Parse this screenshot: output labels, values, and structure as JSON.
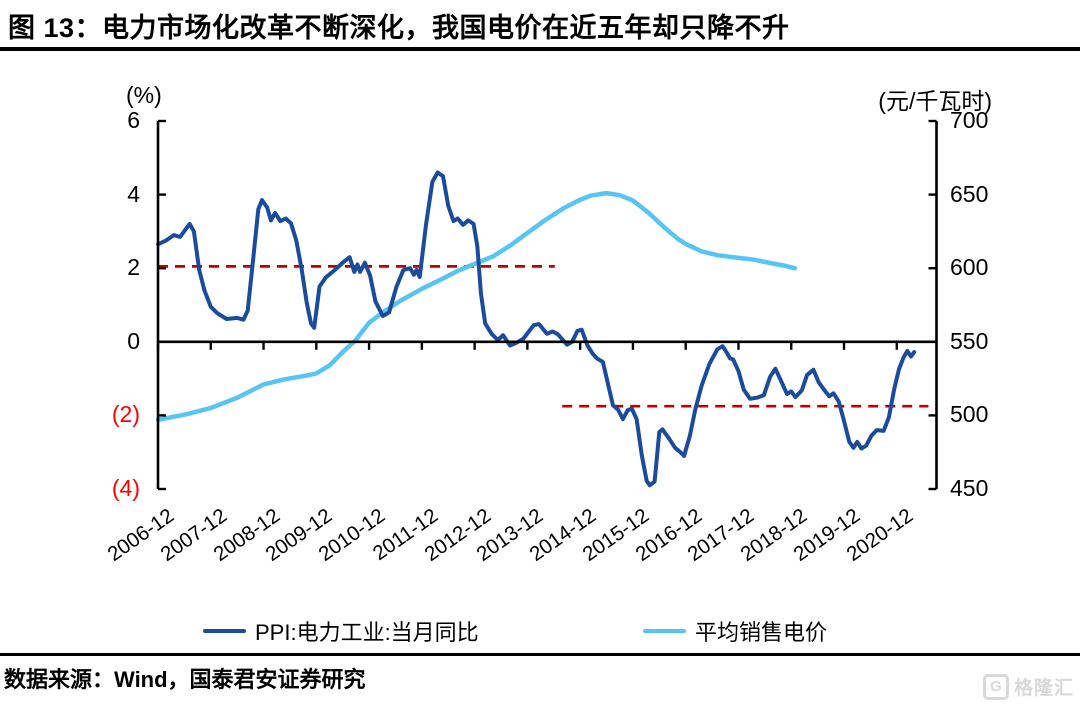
{
  "figure": {
    "title": "图 13：电力市场化改革不断深化，我国电价在近五年却只降不升"
  },
  "source": {
    "text": "数据来源：Wind，国泰君安证券研究"
  },
  "watermark": {
    "text": "格隆汇"
  },
  "chart_data": {
    "type": "line",
    "figure_no": "图 13",
    "title": "电力市场化改革不断深化，我国电价在近五年却只降不升",
    "grid": false,
    "legend_position": "bottom",
    "y_left": {
      "unit": "(%)",
      "range": [
        -4,
        6
      ],
      "ticks": [
        {
          "label": "6",
          "value": 6,
          "color": "#000000"
        },
        {
          "label": "4",
          "value": 4,
          "color": "#000000"
        },
        {
          "label": "2",
          "value": 2,
          "color": "#000000"
        },
        {
          "label": "0",
          "value": 0,
          "color": "#000000"
        },
        {
          "label": "(2)",
          "value": -2,
          "color": "#fe0000"
        },
        {
          "label": "(4)",
          "value": -4,
          "color": "#fe0000"
        }
      ]
    },
    "y_right": {
      "unit": "(元/千瓦时)",
      "range": [
        450,
        700
      ],
      "ticks": [
        {
          "label": "700",
          "value": 700,
          "color": "#000000"
        },
        {
          "label": "650",
          "value": 650,
          "color": "#000000"
        },
        {
          "label": "600",
          "value": 600,
          "color": "#000000"
        },
        {
          "label": "550",
          "value": 550,
          "color": "#000000"
        },
        {
          "label": "500",
          "value": 500,
          "color": "#000000"
        },
        {
          "label": "450",
          "value": 450,
          "color": "#000000"
        }
      ]
    },
    "x_ticks": [
      "2006-12",
      "2007-12",
      "2008-12",
      "2009-12",
      "2010-12",
      "2011-12",
      "2012-12",
      "2013-12",
      "2014-12",
      "2015-12",
      "2016-12",
      "2017-12",
      "2018-12",
      "2019-12",
      "2020-12"
    ],
    "x_unit_note": "x encoded as years after 2006-12",
    "series": [
      {
        "name": "PPI:电力工业:当月同比",
        "axis": "left",
        "color": "#1a4b9d",
        "width": 4,
        "points": [
          [
            0,
            2.65
          ],
          [
            0.15,
            2.75
          ],
          [
            0.3,
            2.9
          ],
          [
            0.42,
            2.85
          ],
          [
            0.52,
            3.05
          ],
          [
            0.6,
            3.2
          ],
          [
            0.68,
            3.0
          ],
          [
            0.78,
            1.95
          ],
          [
            0.88,
            1.4
          ],
          [
            1.0,
            0.95
          ],
          [
            1.12,
            0.78
          ],
          [
            1.3,
            0.62
          ],
          [
            1.5,
            0.65
          ],
          [
            1.62,
            0.6
          ],
          [
            1.7,
            0.85
          ],
          [
            1.8,
            2.2
          ],
          [
            1.9,
            3.6
          ],
          [
            1.97,
            3.85
          ],
          [
            2.07,
            3.65
          ],
          [
            2.14,
            3.3
          ],
          [
            2.22,
            3.5
          ],
          [
            2.32,
            3.28
          ],
          [
            2.42,
            3.35
          ],
          [
            2.52,
            3.22
          ],
          [
            2.62,
            2.75
          ],
          [
            2.72,
            2.0
          ],
          [
            2.82,
            1.05
          ],
          [
            2.9,
            0.5
          ],
          [
            2.96,
            0.38
          ],
          [
            3.06,
            1.5
          ],
          [
            3.18,
            1.75
          ],
          [
            3.35,
            1.95
          ],
          [
            3.5,
            2.15
          ],
          [
            3.63,
            2.3
          ],
          [
            3.72,
            1.9
          ],
          [
            3.78,
            2.1
          ],
          [
            3.83,
            1.9
          ],
          [
            3.92,
            2.15
          ],
          [
            4.02,
            1.8
          ],
          [
            4.12,
            1.1
          ],
          [
            4.26,
            0.7
          ],
          [
            4.38,
            0.8
          ],
          [
            4.52,
            1.5
          ],
          [
            4.65,
            1.95
          ],
          [
            4.78,
            2.0
          ],
          [
            4.85,
            1.82
          ],
          [
            4.9,
            1.95
          ],
          [
            4.96,
            1.76
          ],
          [
            5.08,
            3.2
          ],
          [
            5.2,
            4.35
          ],
          [
            5.3,
            4.6
          ],
          [
            5.4,
            4.5
          ],
          [
            5.5,
            3.7
          ],
          [
            5.6,
            3.28
          ],
          [
            5.68,
            3.35
          ],
          [
            5.78,
            3.18
          ],
          [
            5.88,
            3.3
          ],
          [
            5.98,
            3.2
          ],
          [
            6.05,
            2.6
          ],
          [
            6.12,
            1.3
          ],
          [
            6.2,
            0.5
          ],
          [
            6.32,
            0.22
          ],
          [
            6.44,
            0.05
          ],
          [
            6.54,
            0.18
          ],
          [
            6.67,
            -0.1
          ],
          [
            6.8,
            -0.02
          ],
          [
            6.92,
            0.08
          ],
          [
            7.12,
            0.45
          ],
          [
            7.22,
            0.48
          ],
          [
            7.37,
            0.22
          ],
          [
            7.48,
            0.28
          ],
          [
            7.58,
            0.2
          ],
          [
            7.75,
            -0.08
          ],
          [
            7.85,
            0.0
          ],
          [
            7.95,
            0.3
          ],
          [
            8.03,
            0.33
          ],
          [
            8.14,
            -0.1
          ],
          [
            8.24,
            -0.33
          ],
          [
            8.32,
            -0.45
          ],
          [
            8.43,
            -0.55
          ],
          [
            8.52,
            -1.1
          ],
          [
            8.62,
            -1.72
          ],
          [
            8.72,
            -1.85
          ],
          [
            8.81,
            -2.1
          ],
          [
            8.9,
            -1.86
          ],
          [
            8.98,
            -1.82
          ],
          [
            9.07,
            -2.1
          ],
          [
            9.17,
            -3.1
          ],
          [
            9.26,
            -3.78
          ],
          [
            9.32,
            -3.9
          ],
          [
            9.41,
            -3.8
          ],
          [
            9.5,
            -2.45
          ],
          [
            9.56,
            -2.38
          ],
          [
            9.68,
            -2.62
          ],
          [
            9.8,
            -2.88
          ],
          [
            9.9,
            -3.0
          ],
          [
            9.97,
            -3.1
          ],
          [
            10.08,
            -2.55
          ],
          [
            10.18,
            -1.85
          ],
          [
            10.3,
            -1.2
          ],
          [
            10.45,
            -0.6
          ],
          [
            10.6,
            -0.2
          ],
          [
            10.7,
            -0.12
          ],
          [
            10.78,
            -0.3
          ],
          [
            10.84,
            -0.45
          ],
          [
            10.9,
            -0.48
          ],
          [
            11.0,
            -0.8
          ],
          [
            11.1,
            -1.3
          ],
          [
            11.22,
            -1.55
          ],
          [
            11.35,
            -1.52
          ],
          [
            11.48,
            -1.45
          ],
          [
            11.6,
            -0.95
          ],
          [
            11.7,
            -0.73
          ],
          [
            11.82,
            -1.1
          ],
          [
            11.92,
            -1.42
          ],
          [
            12.0,
            -1.35
          ],
          [
            12.08,
            -1.5
          ],
          [
            12.2,
            -1.32
          ],
          [
            12.3,
            -0.9
          ],
          [
            12.42,
            -0.76
          ],
          [
            12.52,
            -1.1
          ],
          [
            12.62,
            -1.3
          ],
          [
            12.72,
            -1.48
          ],
          [
            12.8,
            -1.4
          ],
          [
            12.9,
            -1.62
          ],
          [
            13.0,
            -2.15
          ],
          [
            13.1,
            -2.72
          ],
          [
            13.18,
            -2.88
          ],
          [
            13.25,
            -2.72
          ],
          [
            13.33,
            -2.9
          ],
          [
            13.42,
            -2.82
          ],
          [
            13.52,
            -2.55
          ],
          [
            13.62,
            -2.4
          ],
          [
            13.75,
            -2.42
          ],
          [
            13.85,
            -2.05
          ],
          [
            13.95,
            -1.3
          ],
          [
            14.04,
            -0.75
          ],
          [
            14.13,
            -0.42
          ],
          [
            14.2,
            -0.25
          ],
          [
            14.27,
            -0.4
          ],
          [
            14.33,
            -0.28
          ]
        ]
      },
      {
        "name": "平均销售电价",
        "axis": "right",
        "color": "#58c4f1",
        "width": 4.5,
        "points": [
          [
            0,
            497
          ],
          [
            0.5,
            500.5
          ],
          [
            1,
            505
          ],
          [
            1.5,
            512
          ],
          [
            2,
            521
          ],
          [
            2.4,
            524.5
          ],
          [
            2.8,
            527
          ],
          [
            3,
            528.5
          ],
          [
            3.25,
            534
          ],
          [
            3.5,
            543
          ],
          [
            3.73,
            550.5
          ],
          [
            4,
            563
          ],
          [
            4.3,
            571
          ],
          [
            4.6,
            578
          ],
          [
            5,
            586
          ],
          [
            5.4,
            593
          ],
          [
            5.7,
            598.5
          ],
          [
            6,
            603
          ],
          [
            6.35,
            608
          ],
          [
            6.7,
            616
          ],
          [
            7,
            624
          ],
          [
            7.35,
            633
          ],
          [
            7.7,
            641
          ],
          [
            8,
            646.5
          ],
          [
            8.2,
            649.3
          ],
          [
            8.5,
            651
          ],
          [
            8.75,
            649.6
          ],
          [
            9,
            646
          ],
          [
            9.3,
            637.5
          ],
          [
            9.6,
            627.5
          ],
          [
            9.85,
            620
          ],
          [
            10,
            616.5
          ],
          [
            10.3,
            611.5
          ],
          [
            10.6,
            608.8
          ],
          [
            11,
            607
          ],
          [
            11.3,
            605.8
          ],
          [
            11.6,
            603.5
          ],
          [
            11.9,
            601.5
          ],
          [
            12.07,
            600
          ]
        ]
      }
    ],
    "reference_lines": [
      {
        "axis": "left",
        "value": 2.05,
        "x_start": 0,
        "x_end": 7.52,
        "color": "#c00000",
        "style": "dashed"
      },
      {
        "axis": "left",
        "value": -1.75,
        "x_start": 7.66,
        "x_end": 14.6,
        "color": "#c00000",
        "style": "dashed"
      }
    ]
  }
}
